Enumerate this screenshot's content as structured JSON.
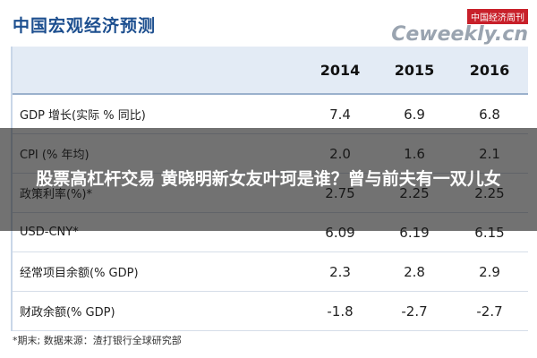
{
  "header": {
    "title": "中国宏观经济预测",
    "logo_cn": "中国经济周刊",
    "logo_en": "Ceweekly.cn"
  },
  "table": {
    "columns": [
      "2014",
      "2015",
      "2016"
    ],
    "rows": [
      [
        "GDP 增长(实际 % 同比)",
        "7.4",
        "6.9",
        "6.8"
      ],
      [
        "CPI (% 年均)",
        "2.0",
        "1.6",
        "2.1"
      ],
      [
        "政策利率(%)*",
        "2.75",
        "2.25",
        "2.25"
      ],
      [
        "USD-CNY*",
        "6.09",
        "6.19",
        "6.15"
      ],
      [
        "经常项目余额(% GDP)",
        "2.3",
        "2.8",
        "2.9"
      ],
      [
        "财政余额(% GDP)",
        "-1.8",
        "-2.7",
        "-2.7"
      ]
    ]
  },
  "footnote": "*期末;   数据来源：渣打银行全球研究部",
  "caption": "股票高杠杆交易 黄晓明新女友叶珂是谁？曾与前夫有一双儿女"
}
